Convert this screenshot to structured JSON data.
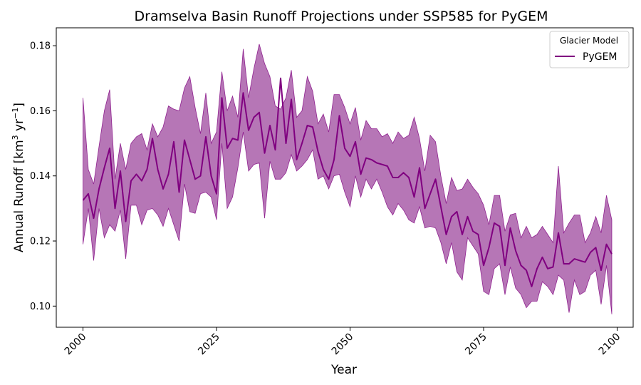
{
  "chart_data": {
    "type": "line",
    "title": "Dramselva Basin Runoff Projections under SSP585 for PyGEM",
    "xlabel": "Year",
    "ylabel": "Annual Runoff [km",
    "ylabel_sup1": "3",
    "ylabel_mid": " yr",
    "ylabel_sup2": "−1",
    "ylabel_end": "]",
    "xlim": [
      1995,
      2103
    ],
    "ylim": [
      0.0935,
      0.1855
    ],
    "x_ticks": [
      2000,
      2025,
      2050,
      2075,
      2100
    ],
    "x_tick_labels": [
      "2000",
      "2025",
      "2050",
      "2075",
      "2100"
    ],
    "y_ticks": [
      0.1,
      0.12,
      0.14,
      0.16,
      0.18
    ],
    "y_tick_labels": [
      "0.10",
      "0.12",
      "0.14",
      "0.16",
      "0.18"
    ],
    "grid": false,
    "legend": {
      "title": "Glacier Model",
      "placement": "top-right"
    },
    "series": [
      {
        "name": "PyGEM",
        "color": "#800080",
        "band_color": "#B06AB0",
        "x": [
          2000,
          2001,
          2002,
          2003,
          2004,
          2005,
          2006,
          2007,
          2008,
          2009,
          2010,
          2011,
          2012,
          2013,
          2014,
          2015,
          2016,
          2017,
          2018,
          2019,
          2020,
          2021,
          2022,
          2023,
          2024,
          2025,
          2026,
          2027,
          2028,
          2029,
          2030,
          2031,
          2032,
          2033,
          2034,
          2035,
          2036,
          2037,
          2038,
          2039,
          2040,
          2041,
          2042,
          2043,
          2044,
          2045,
          2046,
          2047,
          2048,
          2049,
          2050,
          2051,
          2052,
          2053,
          2054,
          2055,
          2056,
          2057,
          2058,
          2059,
          2060,
          2061,
          2062,
          2063,
          2064,
          2065,
          2066,
          2067,
          2068,
          2069,
          2070,
          2071,
          2072,
          2073,
          2074,
          2075,
          2076,
          2077,
          2078,
          2079,
          2080,
          2081,
          2082,
          2083,
          2084,
          2085,
          2086,
          2087,
          2088,
          2089,
          2090,
          2091,
          2092,
          2093,
          2094,
          2095,
          2096,
          2097,
          2098,
          2099
        ],
        "mean": [
          0.1325,
          0.1345,
          0.127,
          0.136,
          0.1425,
          0.1485,
          0.13,
          0.1415,
          0.126,
          0.1385,
          0.1405,
          0.1385,
          0.142,
          0.1515,
          0.142,
          0.136,
          0.1405,
          0.1505,
          0.135,
          0.151,
          0.145,
          0.139,
          0.14,
          0.152,
          0.14,
          0.1345,
          0.164,
          0.1485,
          0.1515,
          0.151,
          0.1655,
          0.154,
          0.158,
          0.1595,
          0.147,
          0.1555,
          0.148,
          0.17,
          0.15,
          0.1635,
          0.145,
          0.15,
          0.1555,
          0.155,
          0.1475,
          0.142,
          0.139,
          0.145,
          0.1585,
          0.1485,
          0.146,
          0.1505,
          0.1405,
          0.1455,
          0.145,
          0.144,
          0.1435,
          0.143,
          0.1395,
          0.1395,
          0.141,
          0.1395,
          0.1335,
          0.1425,
          0.13,
          0.1345,
          0.139,
          0.1305,
          0.122,
          0.1275,
          0.129,
          0.122,
          0.1275,
          0.123,
          0.122,
          0.1125,
          0.118,
          0.1255,
          0.1245,
          0.1125,
          0.124,
          0.117,
          0.1125,
          0.111,
          0.106,
          0.1115,
          0.115,
          0.1115,
          0.112,
          0.1225,
          0.113,
          0.113,
          0.1145,
          0.114,
          0.1135,
          0.1165,
          0.118,
          0.111,
          0.119,
          0.116
        ],
        "upper": [
          0.164,
          0.142,
          0.1375,
          0.149,
          0.16,
          0.1665,
          0.139,
          0.15,
          0.142,
          0.15,
          0.152,
          0.153,
          0.148,
          0.156,
          0.152,
          0.155,
          0.1615,
          0.1605,
          0.16,
          0.167,
          0.1705,
          0.161,
          0.153,
          0.1655,
          0.15,
          0.1535,
          0.172,
          0.16,
          0.1645,
          0.158,
          0.179,
          0.164,
          0.173,
          0.1805,
          0.1745,
          0.1705,
          0.1615,
          0.1605,
          0.164,
          0.1725,
          0.158,
          0.16,
          0.1705,
          0.166,
          0.156,
          0.159,
          0.1535,
          0.165,
          0.165,
          0.161,
          0.156,
          0.161,
          0.151,
          0.157,
          0.1545,
          0.1545,
          0.152,
          0.153,
          0.15,
          0.1535,
          0.1515,
          0.1525,
          0.158,
          0.1515,
          0.1415,
          0.1525,
          0.1505,
          0.14,
          0.1315,
          0.1395,
          0.1355,
          0.136,
          0.139,
          0.1365,
          0.1345,
          0.131,
          0.125,
          0.134,
          0.134,
          0.123,
          0.128,
          0.1285,
          0.121,
          0.1245,
          0.121,
          0.122,
          0.1245,
          0.122,
          0.1195,
          0.143,
          0.1225,
          0.1255,
          0.128,
          0.128,
          0.1195,
          0.1225,
          0.1275,
          0.1225,
          0.134,
          0.1265
        ],
        "lower": [
          0.119,
          0.13,
          0.114,
          0.13,
          0.121,
          0.125,
          0.123,
          0.1295,
          0.1145,
          0.131,
          0.131,
          0.125,
          0.1295,
          0.13,
          0.128,
          0.1245,
          0.13,
          0.125,
          0.12,
          0.1375,
          0.129,
          0.1285,
          0.1345,
          0.135,
          0.1335,
          0.1265,
          0.15,
          0.13,
          0.1335,
          0.1425,
          0.1535,
          0.1415,
          0.1435,
          0.144,
          0.127,
          0.1445,
          0.139,
          0.139,
          0.141,
          0.1465,
          0.1415,
          0.143,
          0.145,
          0.148,
          0.139,
          0.14,
          0.136,
          0.14,
          0.1405,
          0.135,
          0.1305,
          0.14,
          0.1335,
          0.139,
          0.136,
          0.139,
          0.135,
          0.1305,
          0.128,
          0.1315,
          0.1295,
          0.1265,
          0.1255,
          0.1305,
          0.124,
          0.1245,
          0.124,
          0.1195,
          0.113,
          0.1195,
          0.1105,
          0.108,
          0.121,
          0.1185,
          0.116,
          0.1045,
          0.1035,
          0.1115,
          0.113,
          0.1035,
          0.112,
          0.1055,
          0.1035,
          0.0995,
          0.1015,
          0.1015,
          0.1075,
          0.106,
          0.1035,
          0.1095,
          0.108,
          0.098,
          0.108,
          0.1035,
          0.1045,
          0.1095,
          0.111,
          0.1005,
          0.1125,
          0.0975
        ]
      }
    ]
  }
}
